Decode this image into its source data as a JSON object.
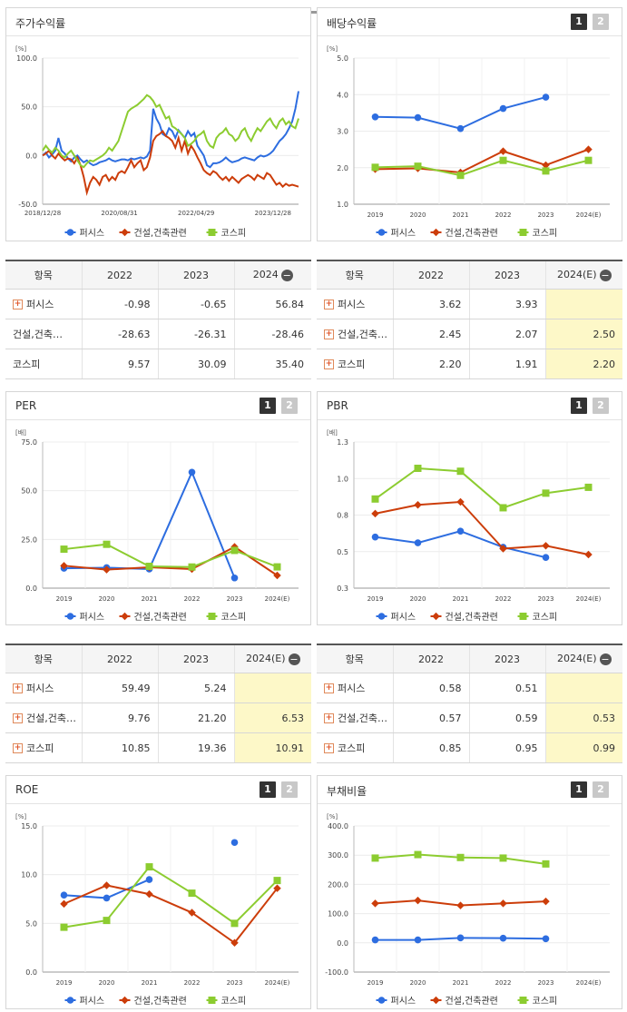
{
  "legend": [
    "퍼시스",
    "건설,건축관련",
    "코스피"
  ],
  "colors": [
    "#2d6de0",
    "#cc3d0a",
    "#8ccc30"
  ],
  "pager": [
    "1",
    "2"
  ],
  "table_header": {
    "item": "항목",
    "y2022": "2022",
    "y2023": "2023",
    "y2024": "2024",
    "y2024e": "2024(E)"
  },
  "panels": {
    "stock": {
      "title": "주가수익률"
    },
    "dividend": {
      "title": "배당수익률"
    },
    "per": {
      "title": "PER"
    },
    "pbr": {
      "title": "PBR"
    },
    "roe": {
      "title": "ROE"
    },
    "debt": {
      "title": "부채비율"
    }
  },
  "tables": {
    "stock": [
      {
        "name": "퍼시스",
        "plus": true,
        "v2022": "-0.98",
        "v2023": "-0.65",
        "v2024": "56.84"
      },
      {
        "name": "건설,건축…",
        "plus": false,
        "v2022": "-28.63",
        "v2023": "-26.31",
        "v2024": "-28.46"
      },
      {
        "name": "코스피",
        "plus": false,
        "v2022": "9.57",
        "v2023": "30.09",
        "v2024": "35.40"
      }
    ],
    "dividend": [
      {
        "name": "퍼시스",
        "plus": true,
        "v2022": "3.62",
        "v2023": "3.93",
        "v2024": ""
      },
      {
        "name": "건설,건축…",
        "plus": true,
        "v2022": "2.45",
        "v2023": "2.07",
        "v2024": "2.50"
      },
      {
        "name": "코스피",
        "plus": true,
        "v2022": "2.20",
        "v2023": "1.91",
        "v2024": "2.20"
      }
    ],
    "per": [
      {
        "name": "퍼시스",
        "plus": true,
        "v2022": "59.49",
        "v2023": "5.24",
        "v2024": ""
      },
      {
        "name": "건설,건축…",
        "plus": true,
        "v2022": "9.76",
        "v2023": "21.20",
        "v2024": "6.53"
      },
      {
        "name": "코스피",
        "plus": true,
        "v2022": "10.85",
        "v2023": "19.36",
        "v2024": "10.91"
      }
    ],
    "pbr": [
      {
        "name": "퍼시스",
        "plus": true,
        "v2022": "0.58",
        "v2023": "0.51",
        "v2024": ""
      },
      {
        "name": "건설,건축…",
        "plus": true,
        "v2022": "0.57",
        "v2023": "0.59",
        "v2024": "0.53"
      },
      {
        "name": "코스피",
        "plus": true,
        "v2022": "0.85",
        "v2023": "0.95",
        "v2024": "0.99"
      }
    ]
  },
  "chart_data": [
    {
      "id": "stock",
      "type": "line",
      "title": "주가수익률",
      "ylabel": "[%]",
      "ylim": [
        -50,
        100
      ],
      "yticks": [
        "100.0",
        "50.0",
        "0.0",
        "-50.0"
      ],
      "xticks": [
        "2018/12/28",
        "2020/08/31",
        "2022/04/29",
        "2023/12/28"
      ],
      "series": [
        {
          "name": "퍼시스",
          "values": [
            0,
            3,
            -2,
            1,
            5,
            18,
            5,
            2,
            -3,
            -6,
            -2,
            0,
            -4,
            -7,
            -5,
            -8,
            -10,
            -9,
            -7,
            -6,
            -5,
            -3,
            -5,
            -6,
            -5,
            -4,
            -4,
            -5,
            -3,
            -4,
            -3,
            -2,
            -3,
            -1,
            5,
            48,
            38,
            32,
            22,
            20,
            28,
            25,
            18,
            26,
            22,
            18,
            25,
            20,
            23,
            10,
            5,
            0,
            -10,
            -12,
            -8,
            -8,
            -7,
            -5,
            -2,
            -5,
            -7,
            -6,
            -5,
            -3,
            -2,
            -3,
            -4,
            -5,
            -2,
            0,
            -1,
            0,
            2,
            5,
            10,
            15,
            18,
            22,
            28,
            35,
            48,
            66
          ]
        },
        {
          "name": "건설,건축관련",
          "values": [
            0,
            2,
            5,
            0,
            -3,
            2,
            -2,
            -5,
            -3,
            -4,
            -8,
            -2,
            -10,
            -22,
            -38,
            -28,
            -22,
            -25,
            -30,
            -22,
            -20,
            -26,
            -22,
            -25,
            -18,
            -16,
            -18,
            -12,
            -5,
            -12,
            -8,
            -5,
            -15,
            -12,
            -2,
            15,
            20,
            22,
            25,
            20,
            18,
            15,
            8,
            18,
            5,
            15,
            2,
            10,
            5,
            -2,
            -8,
            -15,
            -18,
            -20,
            -16,
            -18,
            -22,
            -25,
            -22,
            -26,
            -22,
            -25,
            -28,
            -24,
            -22,
            -20,
            -22,
            -25,
            -20,
            -22,
            -24,
            -18,
            -20,
            -25,
            -30,
            -28,
            -32,
            -29,
            -31,
            -30,
            -31,
            -32
          ]
        },
        {
          "name": "코스피",
          "values": [
            5,
            10,
            6,
            3,
            8,
            5,
            0,
            -2,
            2,
            5,
            0,
            -5,
            -10,
            -12,
            -8,
            -5,
            -6,
            -4,
            -2,
            0,
            3,
            8,
            5,
            10,
            15,
            25,
            35,
            45,
            48,
            50,
            52,
            55,
            58,
            62,
            60,
            56,
            50,
            52,
            45,
            38,
            40,
            30,
            28,
            25,
            22,
            18,
            10,
            12,
            15,
            20,
            22,
            25,
            15,
            10,
            8,
            18,
            22,
            24,
            28,
            22,
            20,
            15,
            18,
            25,
            28,
            20,
            15,
            22,
            28,
            25,
            30,
            35,
            38,
            32,
            28,
            35,
            38,
            32,
            35,
            30,
            28,
            38
          ]
        }
      ]
    },
    {
      "id": "dividend",
      "type": "line",
      "title": "배당수익률",
      "ylabel": "[%]",
      "ylim": [
        1.0,
        5.0
      ],
      "yticks": [
        "5.0",
        "4.0",
        "3.0",
        "2.0",
        "1.0"
      ],
      "categories": [
        "2019",
        "2020",
        "2021",
        "2022",
        "2023",
        "2024(E)"
      ],
      "series": [
        {
          "name": "퍼시스",
          "values": [
            3.39,
            3.37,
            3.07,
            3.62,
            3.93,
            null
          ]
        },
        {
          "name": "건설,건축관련",
          "values": [
            1.96,
            1.98,
            1.87,
            2.45,
            2.07,
            2.5
          ]
        },
        {
          "name": "코스피",
          "values": [
            2.01,
            2.04,
            1.79,
            2.2,
            1.91,
            2.2
          ]
        }
      ]
    },
    {
      "id": "per",
      "type": "line",
      "title": "PER",
      "ylabel": "[배]",
      "ylim": [
        0,
        75
      ],
      "yticks": [
        "75.0",
        "50.0",
        "25.0",
        "0.0"
      ],
      "categories": [
        "2019",
        "2020",
        "2021",
        "2022",
        "2023",
        "2024(E)"
      ],
      "series": [
        {
          "name": "퍼시스",
          "values": [
            10.2,
            10.5,
            9.8,
            59.49,
            5.24,
            null
          ]
        },
        {
          "name": "건설,건축관련",
          "values": [
            11.5,
            9.5,
            10.7,
            9.76,
            21.2,
            6.53
          ]
        },
        {
          "name": "코스피",
          "values": [
            20.0,
            22.5,
            11.2,
            10.85,
            19.36,
            10.91
          ]
        }
      ]
    },
    {
      "id": "pbr",
      "type": "line",
      "title": "PBR",
      "ylabel": "[배]",
      "ylim": [
        0.3,
        1.3
      ],
      "yticks": [
        "1.3",
        "1.0",
        "0.8",
        "0.5",
        "0.3"
      ],
      "categories": [
        "2019",
        "2020",
        "2021",
        "2022",
        "2023",
        "2024(E)"
      ],
      "series": [
        {
          "name": "퍼시스",
          "values": [
            0.65,
            0.61,
            0.69,
            0.58,
            0.51,
            null
          ]
        },
        {
          "name": "건설,건축관련",
          "values": [
            0.81,
            0.87,
            0.89,
            0.57,
            0.59,
            0.53
          ]
        },
        {
          "name": "코스피",
          "values": [
            0.91,
            1.12,
            1.1,
            0.85,
            0.95,
            0.99
          ]
        }
      ]
    },
    {
      "id": "roe",
      "type": "line",
      "title": "ROE",
      "ylabel": "[%]",
      "ylim": [
        0,
        15
      ],
      "yticks": [
        "15.0",
        "10.0",
        "5.0",
        "0.0"
      ],
      "categories": [
        "2019",
        "2020",
        "2021",
        "2022",
        "2023",
        "2024(E)"
      ],
      "series": [
        {
          "name": "퍼시스",
          "values": [
            7.9,
            7.6,
            9.5,
            null,
            13.3,
            null
          ]
        },
        {
          "name": "건설,건축관련",
          "values": [
            7.0,
            8.9,
            8.0,
            6.1,
            3.0,
            8.6
          ]
        },
        {
          "name": "코스피",
          "values": [
            4.6,
            5.3,
            10.8,
            8.1,
            5.0,
            9.4
          ]
        }
      ]
    },
    {
      "id": "debt",
      "type": "line",
      "title": "부채비율",
      "ylabel": "[%]",
      "ylim": [
        -100,
        400
      ],
      "yticks": [
        "400.0",
        "300.0",
        "200.0",
        "100.0",
        "0.0",
        "-100.0"
      ],
      "categories": [
        "2019",
        "2020",
        "2021",
        "2022",
        "2023",
        "2024(E)"
      ],
      "series": [
        {
          "name": "퍼시스",
          "values": [
            10,
            10,
            17,
            16,
            14,
            null
          ]
        },
        {
          "name": "건설,건축관련",
          "values": [
            135,
            145,
            128,
            135,
            142,
            null
          ]
        },
        {
          "name": "코스피",
          "values": [
            290,
            302,
            292,
            290,
            270,
            null
          ]
        }
      ]
    }
  ]
}
